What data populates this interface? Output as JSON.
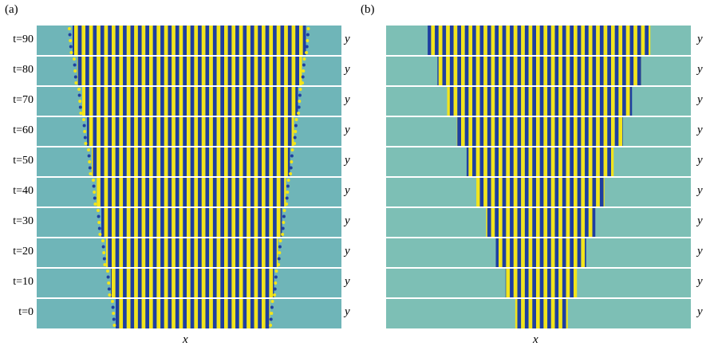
{
  "figure": {
    "panels": [
      {
        "label": "(a)",
        "x_axis_label": "x",
        "y_axis_label": "y",
        "time_labels": [
          "t=90",
          "t=80",
          "t=70",
          "t=60",
          "t=50",
          "t=40",
          "t=30",
          "t=20",
          "t=10",
          "t=0"
        ],
        "background_color": "#6fb5b8"
      },
      {
        "label": "(b)",
        "x_axis_label": "x",
        "y_axis_label": "y",
        "background_color": "#7dbfb5"
      }
    ],
    "stripe_colors": {
      "yellow": "#f2e41c",
      "blue": "#1f3fa0",
      "separator": "#ffffff"
    }
  }
}
